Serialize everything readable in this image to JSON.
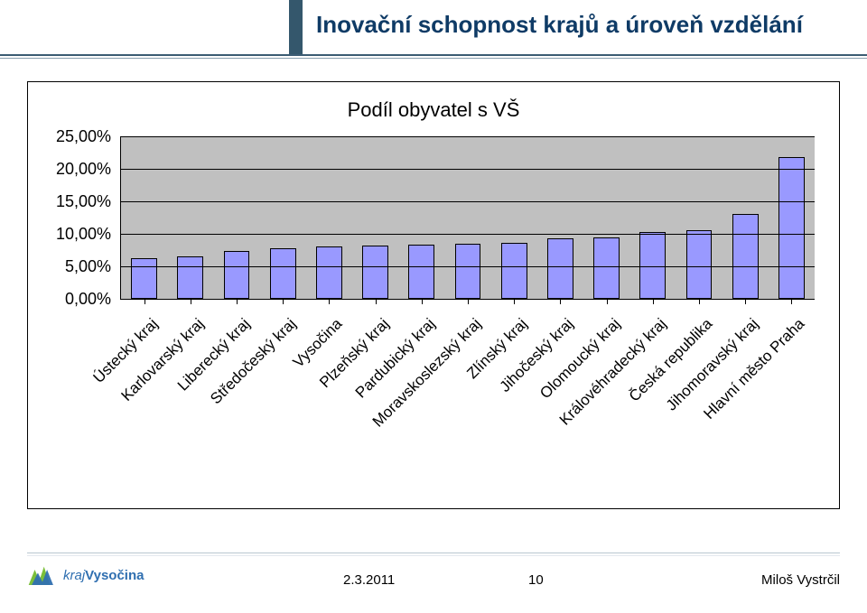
{
  "header": {
    "title": "Inovační schopnost krajů a úroveň vzdělání",
    "title_color": "#0f3b66",
    "accent_color": "#34576c",
    "underline_color": "#3b5c73"
  },
  "chart": {
    "type": "bar",
    "title": "Podíl obyvatel s VŠ",
    "title_fontsize": 22,
    "plot_background": "#c0c0c0",
    "bar_fill": "#9999ff",
    "bar_border": "#000000",
    "grid_color": "#000000",
    "ylim": [
      0,
      25
    ],
    "ytick_step": 5,
    "ytick_labels": [
      "0,00%",
      "5,00%",
      "10,00%",
      "15,00%",
      "20,00%",
      "25,00%"
    ],
    "xlabel_rotation_deg": -45,
    "xlabel_fontsize": 17,
    "ylabel_fontsize": 18,
    "bar_width_ratio": 0.56,
    "categories": [
      "Ústecký kraj",
      "Karlovarský kraj",
      "Liberecký kraj",
      "Středočeský kraj",
      "Vysočina",
      "Plzeňský kraj",
      "Pardubický kraj",
      "Moravskoslezský kraj",
      "Zlínský kraj",
      "Jihočeský kraj",
      "Olomoucký kraj",
      "Královéhradecký kraj",
      "Česká republika",
      "Jihomoravský kraj",
      "Hlavní město Praha"
    ],
    "values": [
      6.2,
      6.5,
      7.4,
      7.8,
      8.0,
      8.2,
      8.3,
      8.5,
      8.6,
      9.3,
      9.4,
      10.3,
      10.6,
      13.0,
      21.8
    ]
  },
  "footer": {
    "date": "2.3.2011",
    "page": "10",
    "author": "Miloš Vystrčil",
    "logo_kraj": "kraj",
    "logo_name": "Vysočina",
    "logo_blue": "#2f6fb0",
    "logo_green": "#7bbf3a"
  }
}
